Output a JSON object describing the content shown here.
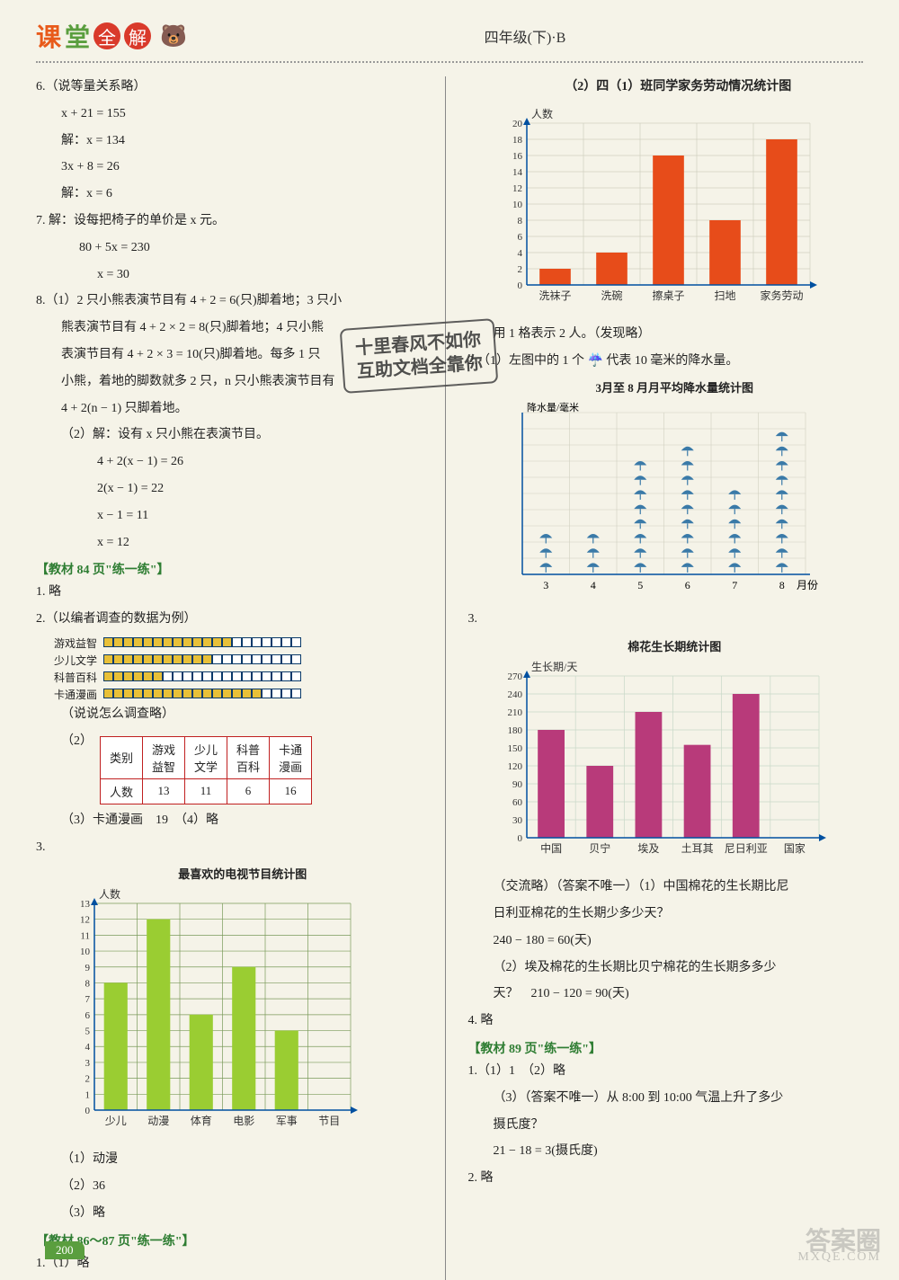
{
  "header": {
    "title_ke": "课",
    "title_tang": "堂",
    "title_quan": "全",
    "title_jie": "解",
    "bear": "🐻",
    "right": "四年级(下)·B"
  },
  "stamp": {
    "line1": "十里春风不如你",
    "line2": "互助文档全靠你"
  },
  "left": {
    "q6_header": "6.（说等量关系略）",
    "q6_l1": "x + 21 = 155",
    "q6_l2": "解：x = 134",
    "q6_l3": "3x + 8 = 26",
    "q6_l4": "解：x = 6",
    "q7_header": "7. 解：设每把椅子的单价是 x 元。",
    "q7_l1": "80 + 5x = 230",
    "q7_l2": "x = 30",
    "q8_1": "8.（1）2 只小熊表演节目有 4 + 2 = 6(只)脚着地；3 只小",
    "q8_2": "熊表演节目有 4 + 2 × 2 = 8(只)脚着地；4 只小熊",
    "q8_3": "表演节目有 4 + 2 × 3 = 10(只)脚着地。每多 1 只",
    "q8_4": "小熊，着地的脚数就多 2 只，n 只小熊表演节目有",
    "q8_5": "4 + 2(n − 1) 只脚着地。",
    "q8_6": "（2）解：设有 x 只小熊在表演节目。",
    "q8_7": "4 + 2(x − 1) = 26",
    "q8_8": "2(x − 1) = 22",
    "q8_9": "x − 1 = 11",
    "q8_10": "x = 12",
    "sec84": "【教材 84 页\"练一练\"】",
    "s84_q1": "1. 略",
    "s84_q2": "2.（以编者调查的数据为例）",
    "survey": {
      "labels": [
        "游戏益智",
        "少儿文学",
        "科普百科",
        "卡通漫画"
      ],
      "filled": [
        13,
        11,
        6,
        16
      ],
      "total": 20,
      "colors": {
        "filled": "#e8c038",
        "border": "#0a3a6a"
      }
    },
    "s84_note": "（说说怎么调查略）",
    "s84_2_2": "（2）",
    "table": {
      "headers": [
        "类别",
        "游戏益智",
        "少儿文学",
        "科普百科",
        "卡通漫画"
      ],
      "row_label": "人数",
      "row": [
        "13",
        "11",
        "6",
        "16"
      ],
      "border_color": "#c02020"
    },
    "s84_2_3": "（3）卡通漫画　19　（4）略",
    "s84_q3": "3.",
    "chart3": {
      "title": "最喜欢的电视节目统计图",
      "ylabel": "人数",
      "categories": [
        "少儿",
        "动漫",
        "体育",
        "电影",
        "军事",
        "节目"
      ],
      "values": [
        8,
        12,
        6,
        9,
        5,
        0
      ],
      "bar_color": "#9acd32",
      "grid_color": "#7a9a5a",
      "ylim": [
        0,
        13
      ],
      "ytick_step": 1,
      "axis_color": "#0050a0"
    },
    "s84_3_1": "（1）动漫",
    "s84_3_2": "（2）36",
    "s84_3_3": "（3）略",
    "sec86": "【教材 86～87 页\"练一练\"】",
    "s86_q1": "1.（1）略"
  },
  "right": {
    "r2_header": "（2）四（1）班同学家务劳动情况统计图",
    "chart_r1": {
      "ylabel": "人数",
      "categories": [
        "洗袜子",
        "洗碗",
        "擦桌子",
        "扫地",
        "家务劳动"
      ],
      "values": [
        2,
        4,
        16,
        8,
        18
      ],
      "bar_color": "#e74c1a",
      "grid_color": "#d0d0c0",
      "ylim": [
        0,
        20
      ],
      "ytick_step": 2,
      "axis_color": "#0050a0"
    },
    "r2_note": "用 1 格表示 2 人。（发现略）",
    "r_q2_1": "2.（1）左图中的 1 个 ☔ 代表 10 毫米的降水量。",
    "chart_r2": {
      "title": "3月至 8 月月平均降水量统计图",
      "ylabel": "降水量/毫米",
      "categories": [
        "3",
        "4",
        "5",
        "6",
        "7",
        "8"
      ],
      "values": [
        3,
        3,
        8,
        9,
        6,
        10
      ],
      "xlabel_suffix": "月份",
      "icon_color": "#3a7aa8"
    },
    "r_q3": "3.",
    "chart_r3": {
      "title": "棉花生长期统计图",
      "ylabel": "生长期/天",
      "categories": [
        "中国",
        "贝宁",
        "埃及",
        "土耳其",
        "尼日利亚",
        "国家"
      ],
      "values": [
        180,
        120,
        210,
        155,
        240,
        0
      ],
      "bar_color": "#b83a7a",
      "grid_color": "#c8d8c8",
      "ylim": [
        0,
        270
      ],
      "ytick_step": 30,
      "axis_color": "#0050a0"
    },
    "r3_note1": "（交流略）（答案不唯一）（1）中国棉花的生长期比尼",
    "r3_note2": "日利亚棉花的生长期少多少天？",
    "r3_calc1": "240 − 180 = 60(天)",
    "r3_note3": "（2）埃及棉花的生长期比贝宁棉花的生长期多多少",
    "r3_note4": "天？　210 − 120 = 90(天)",
    "r_q4": "4. 略",
    "sec89": "【教材 89 页\"练一练\"】",
    "s89_q1": "1.（1）1　（2）略",
    "s89_q1_3a": "（3）（答案不唯一）从 8:00 到 10:00 气温上升了多少",
    "s89_q1_3b": "摄氏度？",
    "s89_q1_3c": "21 − 18 = 3(摄氏度)",
    "s89_q2": "2. 略"
  },
  "footer": {
    "page": "200",
    "watermark": "答案圈",
    "watermark_sub": "MXQE.COM"
  }
}
